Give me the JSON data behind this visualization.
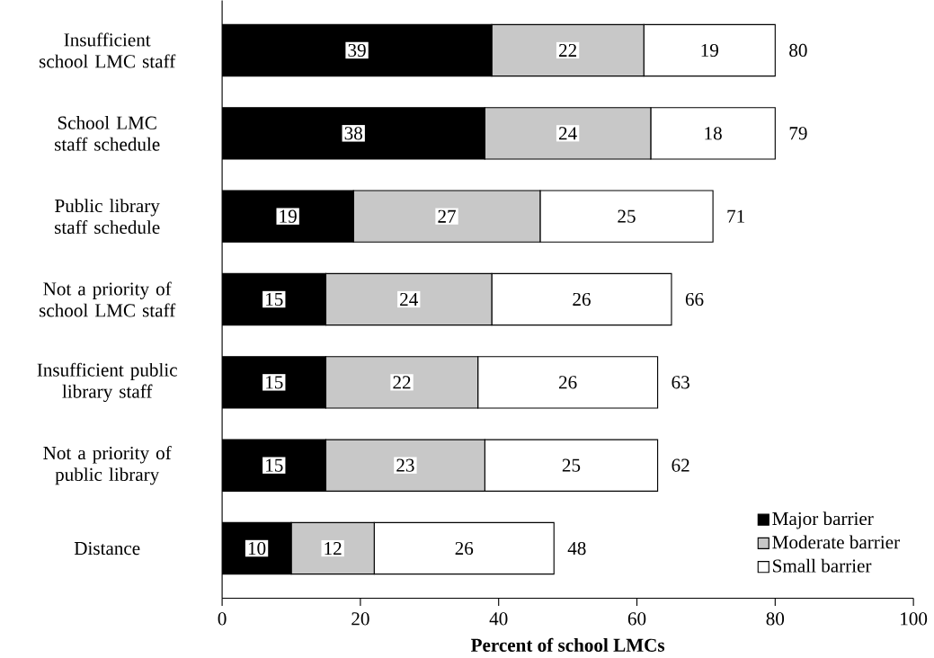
{
  "chart_data": {
    "type": "bar",
    "orientation": "horizontal",
    "stacked": true,
    "categories": [
      "Insufficient school LMC staff",
      "School LMC staff schedule",
      "Public library staff schedule",
      "Not a priority of school LMC staff",
      "Insufficient public library staff",
      "Not a priority of public library",
      "Distance"
    ],
    "series": [
      {
        "name": "Major barrier",
        "color": "#000000",
        "values": [
          39,
          38,
          19,
          15,
          15,
          15,
          10
        ]
      },
      {
        "name": "Moderate barrier",
        "color": "#c8c8c8",
        "values": [
          22,
          24,
          27,
          24,
          22,
          23,
          12
        ]
      },
      {
        "name": "Small barrier",
        "color": "#ffffff",
        "values": [
          19,
          18,
          25,
          26,
          26,
          25,
          26
        ]
      }
    ],
    "totals": [
      "80",
      "79",
      "71",
      "66",
      "63",
      "62",
      "48"
    ],
    "data_labels": true,
    "xlabel": "Percent of school LMCs",
    "xlim": [
      0,
      100
    ],
    "xticks": [
      0,
      20,
      40,
      60,
      80,
      100
    ],
    "legend": "bottom right",
    "grid": false
  }
}
